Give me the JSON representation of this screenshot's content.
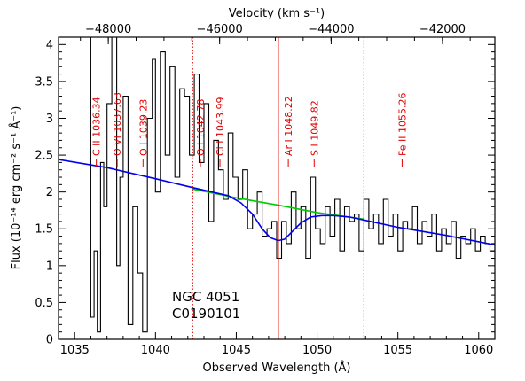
{
  "chart_data": {
    "type": "line",
    "xlabel": "Observed Wavelength (Å)",
    "ylabel": "Flux (10⁻¹⁴ erg cm⁻² s⁻¹ Å⁻¹)",
    "top_xlabel": "Velocity (km s⁻¹)",
    "xlim": [
      1034,
      1061
    ],
    "ylim": [
      0,
      4.1
    ],
    "x_ticks": [
      1035,
      1040,
      1045,
      1050,
      1055,
      1060
    ],
    "y_ticks": [
      0,
      0.5,
      1,
      1.5,
      2,
      2.5,
      3,
      3.5,
      4
    ],
    "y_tick_labels": [
      "0",
      "0.5",
      "1",
      "1.5",
      "2",
      "2.5",
      "3",
      "3.5",
      "4"
    ],
    "top_ticks": [
      {
        "label": "−48000",
        "x": 1037.08
      },
      {
        "label": "−46000",
        "x": 1043.97
      },
      {
        "label": "−44000",
        "x": 1050.87
      },
      {
        "label": "−42000",
        "x": 1057.76
      }
    ],
    "annotation_lines": [
      "NGC 4051",
      "C0190101"
    ],
    "vertical_lines": [
      {
        "x": 1042.3,
        "style": "dotted"
      },
      {
        "x": 1047.6,
        "style": "solid"
      },
      {
        "x": 1052.9,
        "style": "dotted"
      }
    ],
    "line_ids": [
      {
        "label": "C II 1036.34",
        "x": 1036.34
      },
      {
        "label": "O VI 1037.63",
        "x": 1037.63
      },
      {
        "label": "O I 1039.23",
        "x": 1039.23
      },
      {
        "label": "O I 1042.78",
        "x": 1042.78
      },
      {
        "label": "Cl I 1043.99",
        "x": 1043.99
      },
      {
        "label": "Ar I 1048.22",
        "x": 1048.22
      },
      {
        "label": "S I 1049.82",
        "x": 1049.82
      },
      {
        "label": "Fe II 1055.26",
        "x": 1055.26
      }
    ],
    "series": [
      {
        "style": "histogram",
        "color": "#000000",
        "x": [
          1034.0,
          1035.0,
          1035.8,
          1036.0,
          1036.2,
          1036.4,
          1036.6,
          1036.8,
          1037.0,
          1037.3,
          1037.6,
          1037.8,
          1038.0,
          1038.3,
          1038.6,
          1038.9,
          1039.2,
          1039.5,
          1039.8,
          1040.0,
          1040.3,
          1040.6,
          1040.9,
          1041.2,
          1041.5,
          1041.8,
          1042.1,
          1042.4,
          1042.7,
          1043.0,
          1043.3,
          1043.6,
          1043.9,
          1044.2,
          1044.5,
          1044.8,
          1045.1,
          1045.4,
          1045.7,
          1046.0,
          1046.3,
          1046.6,
          1046.9,
          1047.2,
          1047.5,
          1047.8,
          1048.1,
          1048.4,
          1048.7,
          1049.0,
          1049.3,
          1049.6,
          1049.9,
          1050.2,
          1050.5,
          1050.8,
          1051.1,
          1051.4,
          1051.7,
          1052.0,
          1052.3,
          1052.6,
          1052.9,
          1053.2,
          1053.5,
          1053.8,
          1054.1,
          1054.4,
          1054.7,
          1055.0,
          1055.3,
          1055.6,
          1055.9,
          1056.2,
          1056.5,
          1056.8,
          1057.1,
          1057.4,
          1057.7,
          1058.0,
          1058.3,
          1058.6,
          1058.9,
          1059.2,
          1059.5,
          1059.8,
          1060.1,
          1060.4,
          1060.7,
          1061.0
        ],
        "values": [
          4.1,
          4.1,
          4.1,
          0.3,
          1.2,
          0.1,
          2.4,
          1.8,
          3.2,
          4.1,
          1.0,
          2.2,
          3.3,
          0.2,
          1.8,
          0.9,
          0.1,
          3.0,
          3.8,
          2.0,
          3.9,
          2.5,
          3.7,
          2.2,
          3.4,
          3.3,
          2.5,
          3.6,
          2.4,
          3.2,
          1.6,
          2.7,
          2.3,
          1.9,
          2.8,
          2.2,
          1.9,
          2.3,
          1.5,
          1.7,
          2.0,
          1.4,
          1.5,
          1.6,
          1.1,
          1.6,
          1.3,
          2.0,
          1.5,
          1.8,
          1.1,
          2.2,
          1.5,
          1.3,
          1.8,
          1.4,
          1.9,
          1.2,
          1.8,
          1.6,
          1.7,
          1.2,
          1.9,
          1.5,
          1.7,
          1.3,
          1.9,
          1.4,
          1.7,
          1.2,
          1.6,
          1.5,
          1.8,
          1.3,
          1.6,
          1.4,
          1.7,
          1.2,
          1.5,
          1.3,
          1.6,
          1.1,
          1.4,
          1.3,
          1.5,
          1.2,
          1.4,
          1.3,
          1.2,
          1.3
        ]
      },
      {
        "style": "line",
        "color": "#00cc00",
        "x": [
          1042.3,
          1045.0,
          1047.6,
          1050.0,
          1052.9
        ],
        "values": [
          2.04,
          1.92,
          1.82,
          1.72,
          1.63
        ]
      },
      {
        "style": "line",
        "color": "#0000ee",
        "x": [
          1034.0,
          1037.0,
          1040.0,
          1042.3,
          1043.5,
          1044.5,
          1045.3,
          1046.0,
          1046.6,
          1047.1,
          1047.6,
          1048.0,
          1048.5,
          1049.0,
          1049.6,
          1050.3,
          1051.0,
          1052.0,
          1052.9,
          1055.0,
          1058.0,
          1061.0
        ],
        "values": [
          2.44,
          2.33,
          2.18,
          2.06,
          2.0,
          1.95,
          1.85,
          1.7,
          1.5,
          1.38,
          1.34,
          1.36,
          1.47,
          1.58,
          1.66,
          1.68,
          1.68,
          1.66,
          1.62,
          1.52,
          1.41,
          1.28
        ]
      }
    ]
  }
}
